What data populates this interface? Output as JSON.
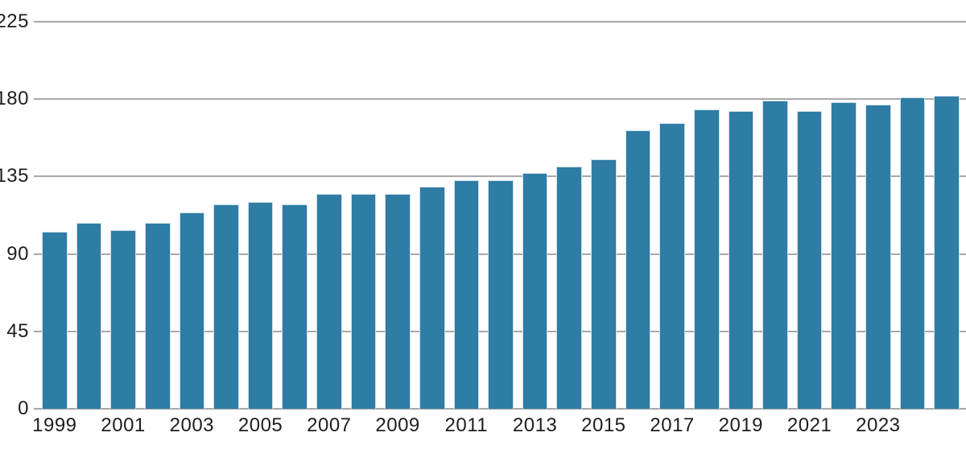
{
  "chart_data": {
    "type": "bar",
    "x": [
      1999,
      2000,
      2001,
      2002,
      2003,
      2004,
      2005,
      2006,
      2007,
      2008,
      2009,
      2010,
      2011,
      2012,
      2013,
      2014,
      2015,
      2016,
      2017,
      2018,
      2019,
      2020,
      2021,
      2022,
      2023,
      2024,
      2025
    ],
    "values": [
      103,
      108,
      104,
      108,
      114,
      119,
      120,
      119,
      125,
      125,
      125,
      129,
      133,
      133,
      137,
      141,
      145,
      162,
      166,
      174,
      173,
      179,
      173,
      178,
      177,
      181,
      182
    ],
    "x_tick_labels": [
      "1999",
      "2001",
      "2003",
      "2005",
      "2007",
      "2009",
      "2011",
      "2013",
      "2015",
      "2017",
      "2019",
      "2021",
      "2023"
    ],
    "y_ticks": [
      0,
      45,
      90,
      135,
      180,
      225
    ],
    "ylim": [
      0,
      225
    ],
    "title": "",
    "xlabel": "",
    "ylabel": "",
    "legend": "none",
    "grid": "horizontal",
    "colors": {
      "bar_fill": "#2f7ca5",
      "bar_stroke": "#deeaf1",
      "gridline": "#a8a8a8",
      "tick_text": "#1e1e1e",
      "background": "#ffffff"
    }
  }
}
